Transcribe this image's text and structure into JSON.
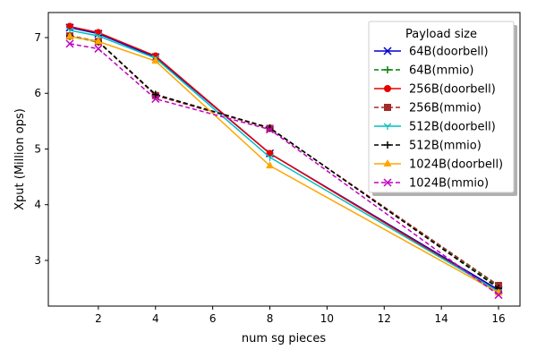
{
  "chart_data": {
    "type": "line",
    "title": "",
    "xlabel": "num sg pieces",
    "ylabel": "Xput (Million ops)",
    "xlim": [
      0.25,
      16.75
    ],
    "ylim": [
      2.18,
      7.45
    ],
    "xticks": [
      2,
      4,
      6,
      8,
      10,
      12,
      14,
      16
    ],
    "yticks": [
      3,
      4,
      5,
      6,
      7
    ],
    "grid": false,
    "legend_title": "Payload size",
    "legend_position": "top-right",
    "x": [
      1,
      2,
      4,
      8,
      16
    ],
    "series": [
      {
        "name": "64B(doorbell)",
        "color": "#0000cc",
        "dash": "solid",
        "marker": "x",
        "values": [
          7.18,
          7.07,
          6.65,
          4.92,
          2.47
        ]
      },
      {
        "name": "64B(mmio)",
        "color": "#008000",
        "dash": "dashed",
        "marker": "plus",
        "values": [
          7.02,
          6.92,
          5.97,
          5.37,
          2.53
        ]
      },
      {
        "name": "256B(doorbell)",
        "color": "#e60000",
        "dash": "solid",
        "marker": "circle",
        "values": [
          7.2,
          7.09,
          6.67,
          4.92,
          2.44
        ]
      },
      {
        "name": "256B(mmio)",
        "color": "#a52a2a",
        "dash": "dashed",
        "marker": "square",
        "values": [
          7.03,
          6.93,
          5.96,
          5.37,
          2.55
        ]
      },
      {
        "name": "512B(doorbell)",
        "color": "#00bfbf",
        "dash": "solid",
        "marker": "tri_down",
        "values": [
          7.13,
          7.03,
          6.63,
          4.85,
          2.44
        ]
      },
      {
        "name": "512B(mmio)",
        "color": "#000000",
        "dash": "dashed",
        "marker": "plus",
        "values": [
          7.03,
          6.93,
          5.98,
          5.38,
          2.5
        ]
      },
      {
        "name": "1024B(doorbell)",
        "color": "#ffa500",
        "dash": "solid",
        "marker": "triangle",
        "values": [
          7.02,
          6.93,
          6.58,
          4.7,
          2.42
        ]
      },
      {
        "name": "1024B(mmio)",
        "color": "#c000c0",
        "dash": "dashed",
        "marker": "x",
        "values": [
          6.89,
          6.8,
          5.9,
          5.35,
          2.38
        ]
      }
    ]
  }
}
